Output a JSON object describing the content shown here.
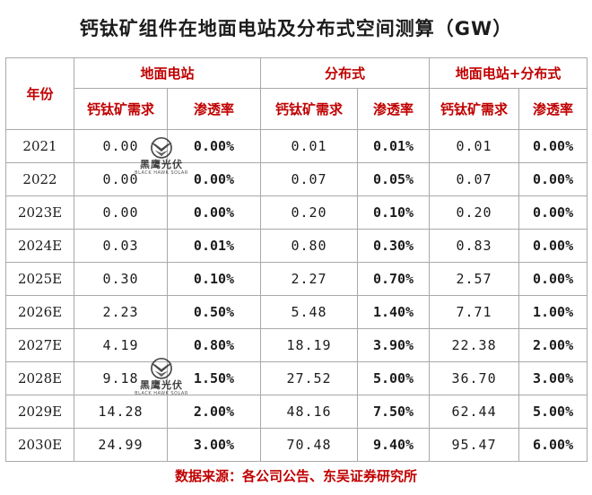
{
  "title": "钙钛矿组件在地面电站及分布式空间测算（GW）",
  "header": {
    "year": "年份",
    "groups": [
      "地面电站",
      "分布式",
      "地面电站+分布式"
    ],
    "demand": "钙钛矿需求",
    "penetration": "渗透率"
  },
  "rows": [
    {
      "year": "2021",
      "g_demand": "0.00",
      "g_pen": "0.00%",
      "d_demand": "0.01",
      "d_pen": "0.01%",
      "t_demand": "0.01",
      "t_pen": "0.00%"
    },
    {
      "year": "2022",
      "g_demand": "0.00",
      "g_pen": "0.00%",
      "d_demand": "0.07",
      "d_pen": "0.05%",
      "t_demand": "0.07",
      "t_pen": "0.00%"
    },
    {
      "year": "2023E",
      "g_demand": "0.00",
      "g_pen": "0.00%",
      "d_demand": "0.20",
      "d_pen": "0.10%",
      "t_demand": "0.20",
      "t_pen": "0.00%"
    },
    {
      "year": "2024E",
      "g_demand": "0.03",
      "g_pen": "0.01%",
      "d_demand": "0.80",
      "d_pen": "0.30%",
      "t_demand": "0.83",
      "t_pen": "0.00%"
    },
    {
      "year": "2025E",
      "g_demand": "0.30",
      "g_pen": "0.10%",
      "d_demand": "2.27",
      "d_pen": "0.70%",
      "t_demand": "2.57",
      "t_pen": "0.00%"
    },
    {
      "year": "2026E",
      "g_demand": "2.23",
      "g_pen": "0.50%",
      "d_demand": "5.48",
      "d_pen": "1.40%",
      "t_demand": "7.71",
      "t_pen": "1.00%"
    },
    {
      "year": "2027E",
      "g_demand": "4.19",
      "g_pen": "0.80%",
      "d_demand": "18.19",
      "d_pen": "3.90%",
      "t_demand": "22.38",
      "t_pen": "2.00%"
    },
    {
      "year": "2028E",
      "g_demand": "9.18",
      "g_pen": "1.50%",
      "d_demand": "27.52",
      "d_pen": "5.00%",
      "t_demand": "36.70",
      "t_pen": "3.00%"
    },
    {
      "year": "2029E",
      "g_demand": "14.28",
      "g_pen": "2.00%",
      "d_demand": "48.16",
      "d_pen": "7.50%",
      "t_demand": "62.44",
      "t_pen": "5.00%"
    },
    {
      "year": "2030E",
      "g_demand": "24.99",
      "g_pen": "3.00%",
      "d_demand": "70.48",
      "d_pen": "9.40%",
      "t_demand": "95.47",
      "t_pen": "6.00%"
    }
  ],
  "source": "数据来源：各公司公告、东吴证券研究所",
  "watermark": {
    "cn": "黑鹰光伏",
    "en": "BLACK HAWK SOLAR",
    "icon": "hawk-emblem-icon"
  },
  "colors": {
    "header_text": "#c00000",
    "body_text": "#1c1c1c",
    "grid": "#a9a9a9"
  }
}
